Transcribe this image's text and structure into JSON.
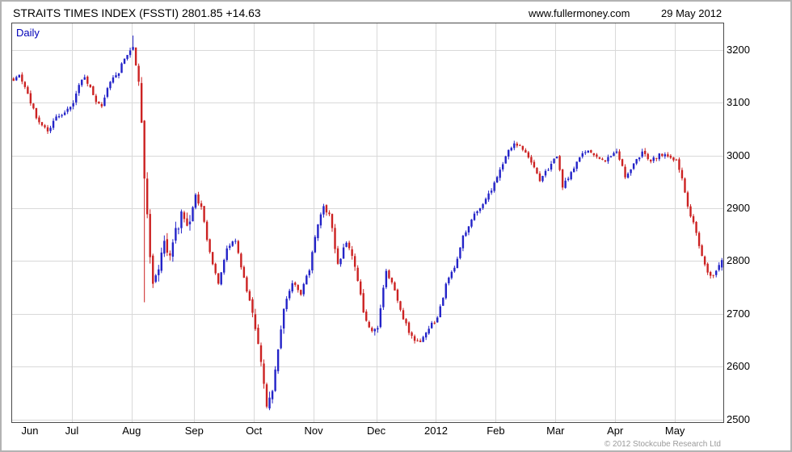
{
  "header": {
    "title": "STRAITS TIMES INDEX (FSSTI) 2801.85 +14.63",
    "website": "www.fullermoney.com",
    "date": "29 May 2012"
  },
  "chart": {
    "frequency_label": "Daily",
    "copyright": "© 2012 Stockcube Research Ltd"
  },
  "chart_data": {
    "type": "candlestick",
    "title": "STRAITS TIMES INDEX (FSSTI)",
    "frequency": "Daily",
    "last_price": 2801.85,
    "change": 14.63,
    "x_categories": [
      "Jun",
      "Jul",
      "Aug",
      "Sep",
      "Oct",
      "Nov",
      "Dec",
      "2012",
      "Feb",
      "Mar",
      "Apr",
      "May"
    ],
    "month_start_days": [
      0,
      21,
      42,
      64,
      85,
      106,
      128,
      149,
      170,
      191,
      212,
      233
    ],
    "total_days": 250,
    "yticks": [
      2500,
      2600,
      2700,
      2800,
      2900,
      3000,
      3100,
      3200
    ],
    "ylim": [
      2495,
      3250
    ],
    "grid": true,
    "grid_color": "#d9d9d9",
    "up_color": "#2323c8",
    "down_color": "#cc2222",
    "axis_text_color": "#000000",
    "legend_position": "none",
    "seed": 3,
    "anchors": [
      [
        0,
        3145
      ],
      [
        2,
        3152
      ],
      [
        4,
        3128
      ],
      [
        6,
        3100
      ],
      [
        9,
        3062
      ],
      [
        12,
        3045
      ],
      [
        15,
        3070
      ],
      [
        18,
        3082
      ],
      [
        21,
        3098
      ],
      [
        23,
        3135
      ],
      [
        25,
        3150
      ],
      [
        27,
        3128
      ],
      [
        29,
        3100
      ],
      [
        31,
        3092
      ],
      [
        33,
        3130
      ],
      [
        35,
        3148
      ],
      [
        37,
        3158
      ],
      [
        39,
        3185
      ],
      [
        42,
        3207
      ],
      [
        44,
        3130
      ],
      [
        45,
        3060
      ],
      [
        46,
        2960
      ],
      [
        47,
        2885
      ],
      [
        48,
        2800
      ],
      [
        49,
        2755
      ],
      [
        51,
        2790
      ],
      [
        53,
        2830
      ],
      [
        55,
        2805
      ],
      [
        57,
        2855
      ],
      [
        59,
        2885
      ],
      [
        61,
        2860
      ],
      [
        63,
        2900
      ],
      [
        64,
        2925
      ],
      [
        66,
        2900
      ],
      [
        69,
        2815
      ],
      [
        72,
        2760
      ],
      [
        75,
        2820
      ],
      [
        78,
        2840
      ],
      [
        81,
        2765
      ],
      [
        84,
        2705
      ],
      [
        85,
        2675
      ],
      [
        87,
        2615
      ],
      [
        89,
        2528
      ],
      [
        91,
        2560
      ],
      [
        93,
        2640
      ],
      [
        95,
        2715
      ],
      [
        98,
        2760
      ],
      [
        101,
        2740
      ],
      [
        104,
        2785
      ],
      [
        106,
        2850
      ],
      [
        109,
        2905
      ],
      [
        111,
        2890
      ],
      [
        114,
        2795
      ],
      [
        117,
        2835
      ],
      [
        120,
        2790
      ],
      [
        123,
        2705
      ],
      [
        126,
        2665
      ],
      [
        128,
        2670
      ],
      [
        131,
        2785
      ],
      [
        134,
        2745
      ],
      [
        137,
        2690
      ],
      [
        140,
        2655
      ],
      [
        143,
        2645
      ],
      [
        146,
        2675
      ],
      [
        149,
        2690
      ],
      [
        152,
        2755
      ],
      [
        155,
        2790
      ],
      [
        158,
        2845
      ],
      [
        161,
        2880
      ],
      [
        164,
        2900
      ],
      [
        167,
        2925
      ],
      [
        170,
        2960
      ],
      [
        173,
        3000
      ],
      [
        176,
        3025
      ],
      [
        179,
        3010
      ],
      [
        182,
        2990
      ],
      [
        185,
        2950
      ],
      [
        188,
        2975
      ],
      [
        191,
        3000
      ],
      [
        193,
        2940
      ],
      [
        196,
        2965
      ],
      [
        199,
        3000
      ],
      [
        202,
        3012
      ],
      [
        205,
        3000
      ],
      [
        208,
        2990
      ],
      [
        211,
        3005
      ],
      [
        212,
        3010
      ],
      [
        215,
        2960
      ],
      [
        218,
        2985
      ],
      [
        221,
        3005
      ],
      [
        224,
        2990
      ],
      [
        227,
        3000
      ],
      [
        230,
        3000
      ],
      [
        233,
        2990
      ],
      [
        235,
        2955
      ],
      [
        237,
        2905
      ],
      [
        239,
        2870
      ],
      [
        241,
        2830
      ],
      [
        243,
        2790
      ],
      [
        245,
        2772
      ],
      [
        247,
        2780
      ],
      [
        249,
        2800
      ]
    ],
    "volatility": {
      "base": 8,
      "zones": [
        [
          44,
          62,
          20
        ],
        [
          84,
          95,
          17
        ],
        [
          106,
          130,
          12
        ]
      ]
    },
    "wick_overrides": {
      "42": {
        "high": 3227
      },
      "46": {
        "low": 2722
      },
      "89": {
        "low": 2521
      }
    },
    "key_points": {
      "august_2011_peak": 3227,
      "october_2011_low": 2521,
      "february_2012_high": 3030,
      "last_close": 2801.85,
      "last_change": 14.63
    }
  }
}
